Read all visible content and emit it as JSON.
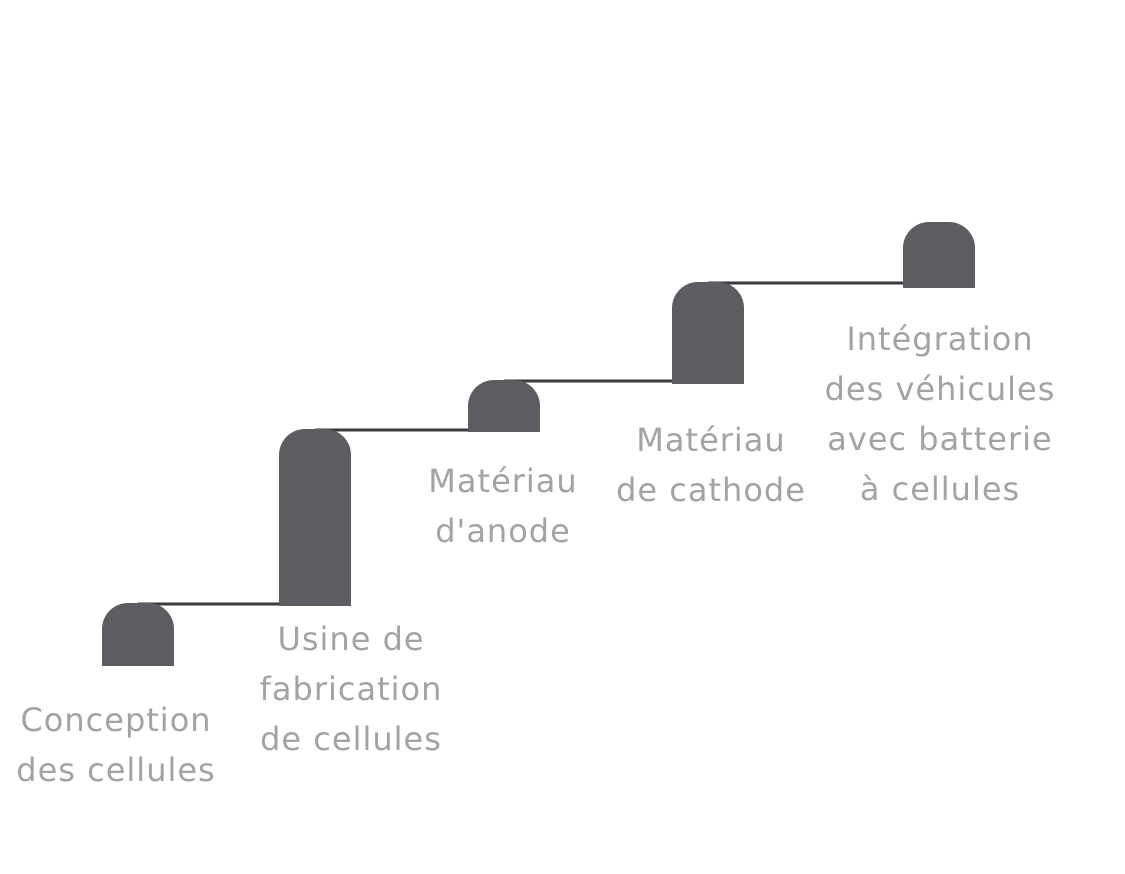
{
  "colors": {
    "block": "#5c5d61",
    "connector": "#3a3a3c",
    "label": "#a3a3a3",
    "background": "#ffffff"
  },
  "steps": [
    {
      "lines": [
        "Conception",
        "des cellules"
      ]
    },
    {
      "lines": [
        "Usine de",
        "fabrication",
        "de cellules"
      ]
    },
    {
      "lines": [
        "Matériau",
        "d'anode"
      ]
    },
    {
      "lines": [
        "Matériau",
        "de cathode"
      ]
    },
    {
      "lines": [
        "Intégration",
        "des véhicules",
        "avec batterie",
        "à cellules"
      ]
    }
  ]
}
